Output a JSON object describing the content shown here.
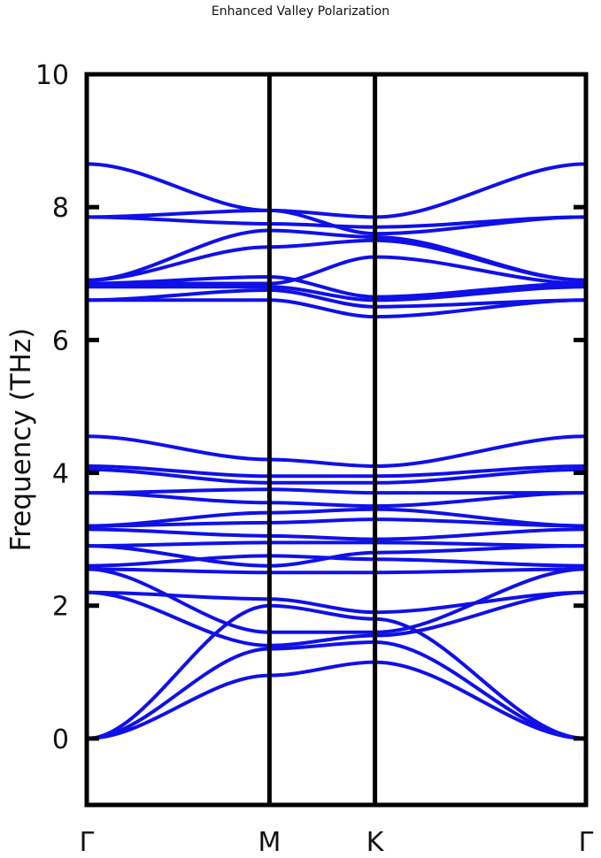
{
  "chart_data": {
    "type": "line",
    "title": "Enhanced Valley Polarization",
    "xlabel": "",
    "ylabel": "Frequency (THz)",
    "ylim": [
      -1,
      10
    ],
    "yticks": [
      0,
      2,
      4,
      6,
      8,
      10
    ],
    "kpath": [
      {
        "label": "Γ",
        "pos": 0
      },
      {
        "label": "M",
        "pos": 0.5773
      },
      {
        "label": "K",
        "pos": 0.9107
      },
      {
        "label": "Γ",
        "pos": 1.5773
      }
    ],
    "grid": false,
    "legend": "none",
    "line_color": "#1010e8",
    "series": [
      {
        "values": [
          0,
          0.95,
          1.15,
          0
        ]
      },
      {
        "values": [
          0,
          1.35,
          1.45,
          0
        ]
      },
      {
        "values": [
          0,
          2.0,
          1.8,
          0
        ]
      },
      {
        "values": [
          2.2,
          1.4,
          1.55,
          2.2
        ]
      },
      {
        "values": [
          2.2,
          2.1,
          1.9,
          2.2
        ]
      },
      {
        "values": [
          2.55,
          1.6,
          1.6,
          2.55
        ]
      },
      {
        "values": [
          2.55,
          2.5,
          2.5,
          2.55
        ]
      },
      {
        "values": [
          2.6,
          2.75,
          2.7,
          2.6
        ]
      },
      {
        "values": [
          2.9,
          2.6,
          2.8,
          2.9
        ]
      },
      {
        "values": [
          2.9,
          2.95,
          2.95,
          2.9
        ]
      },
      {
        "values": [
          3.15,
          3.05,
          3.0,
          3.15
        ]
      },
      {
        "values": [
          3.2,
          3.25,
          3.3,
          3.2
        ]
      },
      {
        "values": [
          3.2,
          3.4,
          3.45,
          3.2
        ]
      },
      {
        "values": [
          3.7,
          3.55,
          3.5,
          3.7
        ]
      },
      {
        "values": [
          3.7,
          3.75,
          3.7,
          3.7
        ]
      },
      {
        "values": [
          4.05,
          3.85,
          3.85,
          4.05
        ]
      },
      {
        "values": [
          4.1,
          3.95,
          3.95,
          4.1
        ]
      },
      {
        "values": [
          4.55,
          4.2,
          4.1,
          4.55
        ]
      },
      {
        "values": [
          6.6,
          6.6,
          6.35,
          6.6
        ]
      },
      {
        "values": [
          6.6,
          6.75,
          6.5,
          6.6
        ]
      },
      {
        "values": [
          6.8,
          6.8,
          6.6,
          6.8
        ]
      },
      {
        "values": [
          6.85,
          6.95,
          6.65,
          6.85
        ]
      },
      {
        "values": [
          6.85,
          6.85,
          7.25,
          6.85
        ]
      },
      {
        "values": [
          6.9,
          7.4,
          7.5,
          6.9
        ]
      },
      {
        "values": [
          6.9,
          7.65,
          7.55,
          6.9
        ]
      },
      {
        "values": [
          7.85,
          7.75,
          7.7,
          7.85
        ]
      },
      {
        "values": [
          7.85,
          7.95,
          7.6,
          7.85
        ]
      },
      {
        "values": [
          8.65,
          7.95,
          7.85,
          8.65
        ]
      }
    ]
  }
}
